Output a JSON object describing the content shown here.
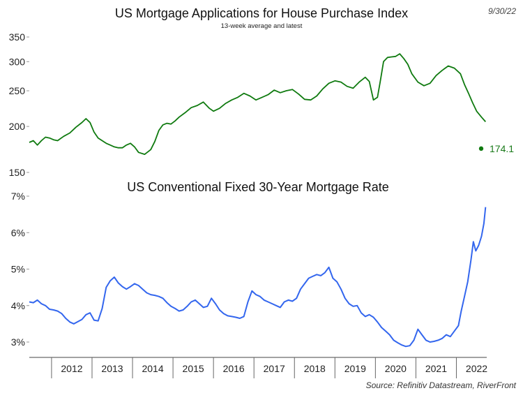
{
  "date_stamp": "9/30/22",
  "source": "Source: Refinitiv Datastream, RiverFront",
  "chart_data": [
    {
      "type": "line",
      "title": "US Mortgage Applications for House Purchase Index",
      "subtitle": "13-week average and latest",
      "ylim": [
        150,
        350
      ],
      "yticks": [
        "350",
        "300",
        "250",
        "200",
        "150"
      ],
      "ytick_values": [
        350,
        300,
        250,
        200,
        150
      ],
      "log_scale": true,
      "grid": false,
      "color": "#0f7a0f",
      "latest_value": 174.1,
      "latest_label": "174.1",
      "x": [
        2011.45,
        2011.55,
        2011.65,
        2011.75,
        2011.85,
        2011.95,
        2012.05,
        2012.15,
        2012.3,
        2012.45,
        2012.6,
        2012.75,
        2012.85,
        2012.95,
        2013.05,
        2013.15,
        2013.25,
        2013.35,
        2013.45,
        2013.55,
        2013.65,
        2013.75,
        2013.85,
        2013.95,
        2014.05,
        2014.15,
        2014.3,
        2014.45,
        2014.55,
        2014.65,
        2014.75,
        2014.85,
        2014.95,
        2015.05,
        2015.15,
        2015.3,
        2015.45,
        2015.6,
        2015.75,
        2015.9,
        2016.0,
        2016.15,
        2016.3,
        2016.45,
        2016.6,
        2016.75,
        2016.9,
        2017.05,
        2017.2,
        2017.35,
        2017.5,
        2017.65,
        2017.8,
        2017.95,
        2018.1,
        2018.25,
        2018.4,
        2018.55,
        2018.7,
        2018.85,
        2019.0,
        2019.15,
        2019.3,
        2019.45,
        2019.6,
        2019.75,
        2019.85,
        2019.95,
        2020.05,
        2020.12,
        2020.2,
        2020.3,
        2020.4,
        2020.5,
        2020.6,
        2020.7,
        2020.8,
        2020.9,
        2021.05,
        2021.2,
        2021.35,
        2021.5,
        2021.65,
        2021.8,
        2021.95,
        2022.1,
        2022.2,
        2022.3,
        2022.4,
        2022.5,
        2022.62,
        2022.72
      ],
      "values": [
        181,
        183,
        178,
        183,
        187,
        186,
        184,
        183,
        188,
        192,
        199,
        205,
        210,
        205,
        193,
        186,
        183,
        180,
        178,
        176,
        175,
        175,
        178,
        180,
        176,
        170,
        168,
        173,
        182,
        195,
        202,
        204,
        203,
        207,
        212,
        218,
        225,
        228,
        233,
        224,
        220,
        224,
        231,
        236,
        240,
        246,
        242,
        236,
        240,
        244,
        251,
        247,
        250,
        252,
        245,
        237,
        236,
        242,
        253,
        262,
        266,
        264,
        257,
        254,
        264,
        272,
        265,
        236,
        240,
        265,
        300,
        308,
        309,
        310,
        315,
        306,
        295,
        278,
        264,
        258,
        262,
        275,
        284,
        292,
        288,
        278,
        260,
        246,
        232,
        220,
        212,
        206
      ]
    },
    {
      "type": "line",
      "title": "US Conventional Fixed 30-Year Mortgage Rate",
      "ylim": [
        2.8,
        7.2
      ],
      "yticks": [
        "7%",
        "6%",
        "5%",
        "4%",
        "3%"
      ],
      "ytick_values": [
        7,
        6,
        5,
        4,
        3
      ],
      "grid": false,
      "color": "#3366ee",
      "x": [
        2011.45,
        2011.55,
        2011.65,
        2011.75,
        2011.85,
        2011.95,
        2012.05,
        2012.15,
        2012.25,
        2012.35,
        2012.45,
        2012.55,
        2012.65,
        2012.75,
        2012.85,
        2012.95,
        2013.05,
        2013.15,
        2013.25,
        2013.35,
        2013.45,
        2013.55,
        2013.65,
        2013.75,
        2013.85,
        2013.95,
        2014.05,
        2014.15,
        2014.25,
        2014.35,
        2014.45,
        2014.55,
        2014.65,
        2014.75,
        2014.85,
        2014.95,
        2015.05,
        2015.15,
        2015.25,
        2015.35,
        2015.45,
        2015.55,
        2015.65,
        2015.75,
        2015.85,
        2015.95,
        2016.05,
        2016.15,
        2016.25,
        2016.35,
        2016.45,
        2016.55,
        2016.65,
        2016.75,
        2016.85,
        2016.95,
        2017.05,
        2017.15,
        2017.25,
        2017.35,
        2017.45,
        2017.55,
        2017.65,
        2017.75,
        2017.85,
        2017.95,
        2018.05,
        2018.15,
        2018.25,
        2018.35,
        2018.45,
        2018.55,
        2018.65,
        2018.75,
        2018.85,
        2018.95,
        2019.05,
        2019.15,
        2019.25,
        2019.35,
        2019.45,
        2019.55,
        2019.65,
        2019.75,
        2019.85,
        2019.95,
        2020.05,
        2020.15,
        2020.25,
        2020.35,
        2020.45,
        2020.55,
        2020.65,
        2020.75,
        2020.85,
        2020.95,
        2021.05,
        2021.15,
        2021.25,
        2021.35,
        2021.45,
        2021.55,
        2021.65,
        2021.75,
        2021.85,
        2021.95,
        2022.05,
        2022.12,
        2022.2,
        2022.28,
        2022.36,
        2022.42,
        2022.48,
        2022.55,
        2022.62,
        2022.68,
        2022.72
      ],
      "values": [
        4.1,
        4.08,
        4.15,
        4.05,
        4.0,
        3.9,
        3.88,
        3.85,
        3.78,
        3.65,
        3.55,
        3.5,
        3.56,
        3.62,
        3.75,
        3.8,
        3.6,
        3.58,
        3.92,
        4.5,
        4.68,
        4.78,
        4.62,
        4.52,
        4.45,
        4.52,
        4.6,
        4.55,
        4.45,
        4.35,
        4.3,
        4.28,
        4.25,
        4.2,
        4.08,
        3.98,
        3.92,
        3.85,
        3.88,
        3.98,
        4.1,
        4.15,
        4.05,
        3.95,
        3.98,
        4.2,
        4.05,
        3.88,
        3.78,
        3.72,
        3.7,
        3.68,
        3.65,
        3.7,
        4.1,
        4.4,
        4.3,
        4.25,
        4.15,
        4.1,
        4.05,
        4.0,
        3.95,
        4.1,
        4.15,
        4.12,
        4.2,
        4.45,
        4.6,
        4.75,
        4.8,
        4.85,
        4.82,
        4.9,
        5.05,
        4.75,
        4.65,
        4.45,
        4.2,
        4.05,
        3.98,
        4.0,
        3.8,
        3.7,
        3.75,
        3.68,
        3.55,
        3.4,
        3.3,
        3.2,
        3.05,
        2.98,
        2.92,
        2.88,
        2.9,
        3.05,
        3.35,
        3.2,
        3.05,
        3.0,
        3.02,
        3.05,
        3.1,
        3.2,
        3.15,
        3.3,
        3.45,
        3.85,
        4.25,
        4.65,
        5.25,
        5.75,
        5.5,
        5.65,
        5.9,
        6.25,
        6.7
      ]
    }
  ],
  "x_axis": {
    "ticks": [
      "2012",
      "2013",
      "2014",
      "2015",
      "2016",
      "2017",
      "2018",
      "2019",
      "2020",
      "2021",
      "2022"
    ],
    "tick_values": [
      2012,
      2013,
      2014,
      2015,
      2016,
      2017,
      2018,
      2019,
      2020,
      2021,
      2022
    ],
    "xlim": [
      2011.45,
      2022.75
    ]
  }
}
